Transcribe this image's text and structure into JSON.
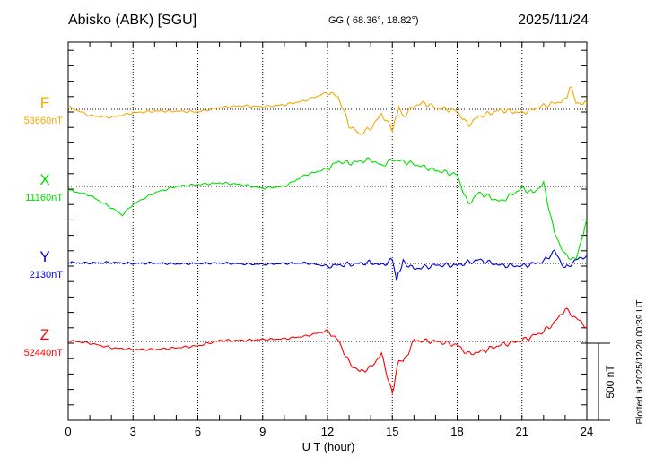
{
  "header": {
    "station": "Abisko (ABK)  [SGU]",
    "coords": "GG ( 68.36°,  18.82°)",
    "date": "2025/11/24"
  },
  "footer": {
    "plotted": "Plotted at 2025/12/20 00:39 UT",
    "scale": "500 nT"
  },
  "chart_data": {
    "type": "line",
    "xlabel": "U T (hour)",
    "xlim": [
      0,
      24
    ],
    "xticks": [
      "0",
      "3",
      "6",
      "9",
      "12",
      "15",
      "18",
      "21",
      "24"
    ],
    "scale_bar_nT": 500,
    "series": [
      {
        "name": "F",
        "baseline": "53660nT",
        "color": "#f5a800",
        "x": [
          0,
          1,
          2,
          3,
          4,
          5,
          6,
          7,
          8,
          9,
          10,
          11,
          12,
          12.5,
          13,
          13.5,
          14,
          14.5,
          15,
          15.3,
          15.5,
          16,
          16.5,
          17,
          18,
          18.5,
          19,
          20,
          21,
          22,
          23,
          23.3,
          23.5,
          24
        ],
        "y": [
          17,
          -41,
          -52,
          -23,
          -12,
          -12,
          -17,
          12,
          23,
          17,
          29,
          58,
          110,
          81,
          -104,
          -162,
          -122,
          -29,
          -133,
          12,
          -46,
          23,
          41,
          12,
          -12,
          -104,
          -46,
          -6,
          -23,
          23,
          58,
          157,
          41,
          41
        ]
      },
      {
        "name": "X",
        "baseline": "11160nT",
        "color": "#00e000",
        "x": [
          0,
          1,
          2,
          2.5,
          3,
          4,
          5,
          6,
          7,
          8,
          9,
          10,
          11,
          12,
          12.5,
          13,
          14,
          14.5,
          15,
          15.5,
          16,
          17,
          18,
          18.5,
          19,
          20,
          21,
          21.5,
          22,
          22.5,
          23,
          23.5,
          24
        ],
        "y": [
          -23,
          -58,
          -139,
          -186,
          -116,
          -41,
          0,
          12,
          23,
          12,
          -12,
          0,
          75,
          116,
          162,
          151,
          174,
          133,
          174,
          162,
          145,
          104,
          75,
          -116,
          -41,
          -99,
          -12,
          -41,
          17,
          -302,
          -447,
          -476,
          -215
        ]
      },
      {
        "name": "Y",
        "baseline": "2130nT",
        "color": "#0000dd",
        "x": [
          0,
          1,
          2,
          3,
          4,
          5,
          6,
          7,
          8,
          9,
          10,
          11,
          12,
          13,
          14,
          14.5,
          15,
          15.2,
          15.5,
          16,
          17,
          18,
          19,
          20,
          21,
          22,
          22.5,
          23,
          23.5,
          24
        ],
        "y": [
          6,
          3,
          6,
          0,
          3,
          -3,
          0,
          3,
          -3,
          -6,
          0,
          3,
          -17,
          -6,
          6,
          -12,
          23,
          -104,
          12,
          -35,
          -12,
          -12,
          23,
          -12,
          -17,
          12,
          81,
          -35,
          23,
          52
        ]
      },
      {
        "name": "Z",
        "baseline": "52440nT",
        "color": "#ff0000",
        "x": [
          0,
          1,
          2,
          3,
          4,
          5,
          6,
          7,
          8,
          9,
          10,
          11,
          12,
          12.5,
          13,
          13.5,
          14,
          14.5,
          15,
          15.3,
          15.5,
          16,
          17,
          18,
          18.5,
          19,
          20,
          21,
          22,
          22.5,
          23,
          23.5,
          24
        ],
        "y": [
          6,
          -12,
          -41,
          -52,
          -52,
          -41,
          -29,
          6,
          6,
          12,
          17,
          35,
          70,
          6,
          -139,
          -197,
          -168,
          -81,
          -342,
          -110,
          -139,
          6,
          0,
          -23,
          -81,
          -70,
          -23,
          6,
          64,
          122,
          209,
          151,
          93
        ]
      }
    ]
  }
}
